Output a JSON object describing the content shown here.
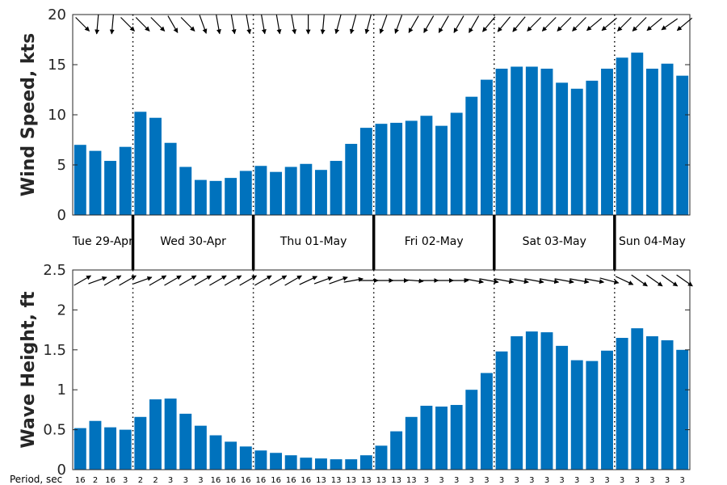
{
  "chart_data": [
    {
      "type": "bar",
      "ylabel": "Wind Speed, kts",
      "ylim": [
        0,
        20
      ],
      "yticks": [
        "0",
        "5",
        "10",
        "15",
        "20"
      ],
      "values": [
        7.0,
        6.4,
        5.4,
        6.8,
        10.3,
        9.7,
        7.2,
        4.8,
        3.5,
        3.4,
        3.7,
        4.4,
        4.9,
        4.3,
        4.8,
        5.1,
        4.5,
        5.4,
        7.1,
        8.7,
        9.1,
        9.2,
        9.4,
        9.9,
        8.9,
        10.2,
        11.8,
        13.5,
        14.6,
        14.8,
        14.8,
        14.6,
        13.2,
        12.6,
        13.4,
        14.6,
        15.7,
        16.2,
        14.6,
        15.1,
        13.9
      ],
      "direction_deg": [
        45,
        95,
        95,
        45,
        45,
        45,
        60,
        45,
        70,
        80,
        80,
        80,
        80,
        80,
        80,
        90,
        95,
        105,
        105,
        105,
        110,
        110,
        120,
        120,
        120,
        120,
        120,
        130,
        130,
        130,
        135,
        135,
        135,
        135,
        140,
        140,
        135,
        135,
        140,
        145,
        140
      ],
      "grid": false
    },
    {
      "type": "bar",
      "ylabel": "Wave Height, ft",
      "ylim": [
        0,
        2.5
      ],
      "yticks": [
        "0",
        "0.5",
        "1",
        "1.5",
        "2",
        "2.5"
      ],
      "values": [
        0.52,
        0.61,
        0.53,
        0.5,
        0.66,
        0.88,
        0.89,
        0.7,
        0.55,
        0.43,
        0.35,
        0.29,
        0.24,
        0.21,
        0.18,
        0.15,
        0.14,
        0.13,
        0.13,
        0.18,
        0.3,
        0.48,
        0.66,
        0.8,
        0.79,
        0.81,
        1.0,
        1.21,
        1.48,
        1.67,
        1.73,
        1.72,
        1.55,
        1.37,
        1.36,
        1.49,
        1.65,
        1.77,
        1.67,
        1.62,
        1.5
      ],
      "direction_deg": [
        -30,
        -20,
        -30,
        -30,
        -20,
        -30,
        -30,
        -30,
        -30,
        -30,
        -30,
        -30,
        -30,
        -30,
        -30,
        -25,
        -20,
        -20,
        -10,
        0,
        0,
        0,
        5,
        0,
        0,
        0,
        10,
        10,
        10,
        10,
        10,
        10,
        10,
        10,
        10,
        15,
        25,
        35,
        35,
        35,
        35
      ],
      "grid": false
    }
  ],
  "days": [
    "Tue 29-Apr",
    "Wed 30-Apr",
    "Thu 01-May",
    "Fri 02-May",
    "Sat 03-May",
    "Sun 04-May"
  ],
  "day_start_index": [
    0,
    4,
    12,
    20,
    28,
    36
  ],
  "period_title": "Period, sec",
  "periods": [
    "16",
    "2",
    "16",
    "3",
    "2",
    "2",
    "3",
    "3",
    "3",
    "16",
    "16",
    "16",
    "16",
    "16",
    "16",
    "16",
    "13",
    "13",
    "13",
    "13",
    "13",
    "13",
    "13",
    "3",
    "3",
    "3",
    "3",
    "3",
    "3",
    "3",
    "3",
    "3",
    "3",
    "3",
    "3",
    "3",
    "3",
    "3",
    "3",
    "3",
    "3"
  ],
  "colors": {
    "bar": "#0072BD",
    "axis": "#262626",
    "arrow": "#000000"
  }
}
